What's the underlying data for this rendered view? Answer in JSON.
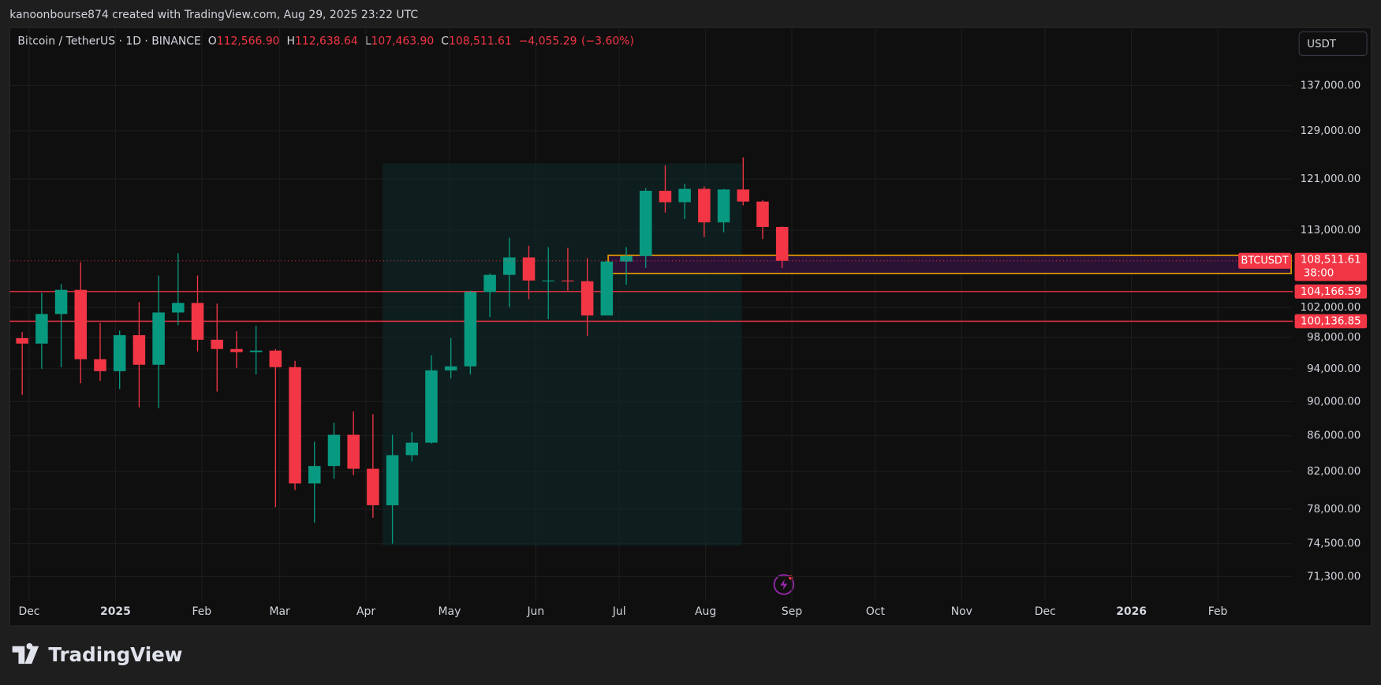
{
  "header": {
    "text": "kanoonbourse874 created with TradingView.com, Aug 29, 2025 23:22 UTC"
  },
  "footer": {
    "brand": "TradingView"
  },
  "chart_data": {
    "type": "candlestick",
    "symbol": "Bitcoin / TetherUS · 1D · BINANCE",
    "legend_fields": {
      "labels": [
        "O",
        "H",
        "L",
        "C"
      ],
      "values": [
        112566.9,
        112638.64,
        107463.9,
        108511.61
      ],
      "value_labels": [
        "112,566.90",
        "112,638.64",
        "107,463.90",
        "108,511.61"
      ]
    },
    "change": {
      "values": [
        -4055.29,
        -3.6
      ],
      "value_labels": [
        "−4,055.29",
        "(−3.60%)"
      ]
    },
    "currency": "USDT",
    "colors": {
      "up": "#089981",
      "down": "#f23645",
      "zone": "#f7a600"
    },
    "log_scale": true,
    "grid": true,
    "x": [
      "2024-11-25",
      "2024-12-02",
      "2024-12-09",
      "2024-12-16",
      "2024-12-23",
      "2024-12-30",
      "2025-01-06",
      "2025-01-13",
      "2025-01-20",
      "2025-01-27",
      "2025-02-03",
      "2025-02-10",
      "2025-02-17",
      "2025-02-24",
      "2025-03-03",
      "2025-03-10",
      "2025-03-17",
      "2025-03-24",
      "2025-03-31",
      "2025-04-07",
      "2025-04-14",
      "2025-04-21",
      "2025-04-28",
      "2025-05-05",
      "2025-05-12",
      "2025-05-19",
      "2025-05-26",
      "2025-06-02",
      "2025-06-09",
      "2025-06-16",
      "2025-06-23",
      "2025-06-30",
      "2025-07-07",
      "2025-07-14",
      "2025-07-21",
      "2025-07-28",
      "2025-08-04",
      "2025-08-11",
      "2025-08-18",
      "2025-08-25"
    ],
    "open": [
      97900,
      97200,
      101100,
      104400,
      95200,
      93700,
      98300,
      94500,
      101300,
      102600,
      97700,
      96500,
      96100,
      96300,
      94200,
      80700,
      82600,
      86100,
      82300,
      78400,
      83800,
      85200,
      93800,
      94300,
      104100,
      106500,
      109000,
      105700,
      105700,
      105600,
      100900,
      108400,
      109200,
      119100,
      117300,
      119400,
      114200,
      119300,
      117400,
      113500
    ],
    "high": [
      98700,
      104000,
      105200,
      108300,
      99900,
      98900,
      102700,
      106400,
      109600,
      106400,
      102500,
      98800,
      99500,
      96500,
      95000,
      85300,
      87500,
      88800,
      88500,
      86100,
      86400,
      95700,
      97900,
      104300,
      106700,
      111900,
      110700,
      110500,
      110400,
      108900,
      108500,
      110500,
      119500,
      123200,
      120200,
      119800,
      119400,
      124500,
      117600,
      113600
    ],
    "low": [
      90800,
      94000,
      94200,
      92200,
      92500,
      91500,
      89300,
      89200,
      99600,
      96200,
      91200,
      94100,
      93300,
      78200,
      80000,
      76600,
      81200,
      81600,
      77100,
      74500,
      83100,
      85100,
      92800,
      93300,
      100700,
      102000,
      103100,
      100400,
      104300,
      98200,
      100900,
      105100,
      107500,
      115700,
      114700,
      112000,
      112700,
      116800,
      111700,
      107463.9
    ],
    "close": [
      97200,
      101100,
      104400,
      95200,
      93700,
      98300,
      94500,
      101300,
      102600,
      97700,
      96500,
      96100,
      96300,
      94200,
      80700,
      82600,
      86100,
      82300,
      78400,
      83800,
      85200,
      93800,
      94300,
      104100,
      106500,
      109000,
      105700,
      105700,
      105600,
      100900,
      108400,
      109200,
      119100,
      117300,
      119400,
      114200,
      119300,
      117400,
      113500,
      108511.61
    ],
    "xlim": [
      "2024-11-24",
      "2026-02-28"
    ],
    "xticks": [
      {
        "value": "2024-12-01",
        "label": "Dec"
      },
      {
        "value": "2025-01-01",
        "label": "2025"
      },
      {
        "value": "2025-02-01",
        "label": "Feb"
      },
      {
        "value": "2025-03-01",
        "label": "Mar"
      },
      {
        "value": "2025-04-01",
        "label": "Apr"
      },
      {
        "value": "2025-05-01",
        "label": "May"
      },
      {
        "value": "2025-06-01",
        "label": "Jun"
      },
      {
        "value": "2025-07-01",
        "label": "Jul"
      },
      {
        "value": "2025-08-01",
        "label": "Aug"
      },
      {
        "value": "2025-09-01",
        "label": "Sep"
      },
      {
        "value": "2025-10-01",
        "label": "Oct"
      },
      {
        "value": "2025-11-01",
        "label": "Nov"
      },
      {
        "value": "2025-12-01",
        "label": "Dec"
      },
      {
        "value": "2026-01-01",
        "label": "2026"
      },
      {
        "value": "2026-02-01",
        "label": "Feb"
      }
    ],
    "ylim": [
      69000,
      148000
    ],
    "yticks": [
      {
        "value": 137000,
        "label": "137,000.00"
      },
      {
        "value": 129000,
        "label": "129,000.00"
      },
      {
        "value": 121000,
        "label": "121,000.00"
      },
      {
        "value": 113000,
        "label": "113,000.00"
      },
      {
        "value": 102000,
        "label": "102,000.00"
      },
      {
        "value": 98000,
        "label": "98,000.00"
      },
      {
        "value": 94000,
        "label": "94,000.00"
      },
      {
        "value": 90000,
        "label": "90,000.00"
      },
      {
        "value": 86000,
        "label": "86,000.00"
      },
      {
        "value": 82000,
        "label": "82,000.00"
      },
      {
        "value": 78000,
        "label": "78,000.00"
      },
      {
        "value": 74500,
        "label": "74,500.00"
      },
      {
        "value": 71300,
        "label": "71,300.00"
      }
    ],
    "price_lines": [
      {
        "value": 104166.59,
        "label": "104,166.59"
      },
      {
        "value": 100136.85,
        "label": "100,136.85"
      }
    ],
    "last_price": {
      "name": "BTCUSDT",
      "value": 108511.61,
      "label": "108,511.61",
      "countdown": "38:00"
    },
    "zone": {
      "start": "2025-06-27",
      "y": [
        106700,
        109300
      ]
    },
    "range": {
      "x": [
        "2025-04-07",
        "2025-08-14"
      ],
      "y": [
        74300,
        123500
      ]
    }
  }
}
